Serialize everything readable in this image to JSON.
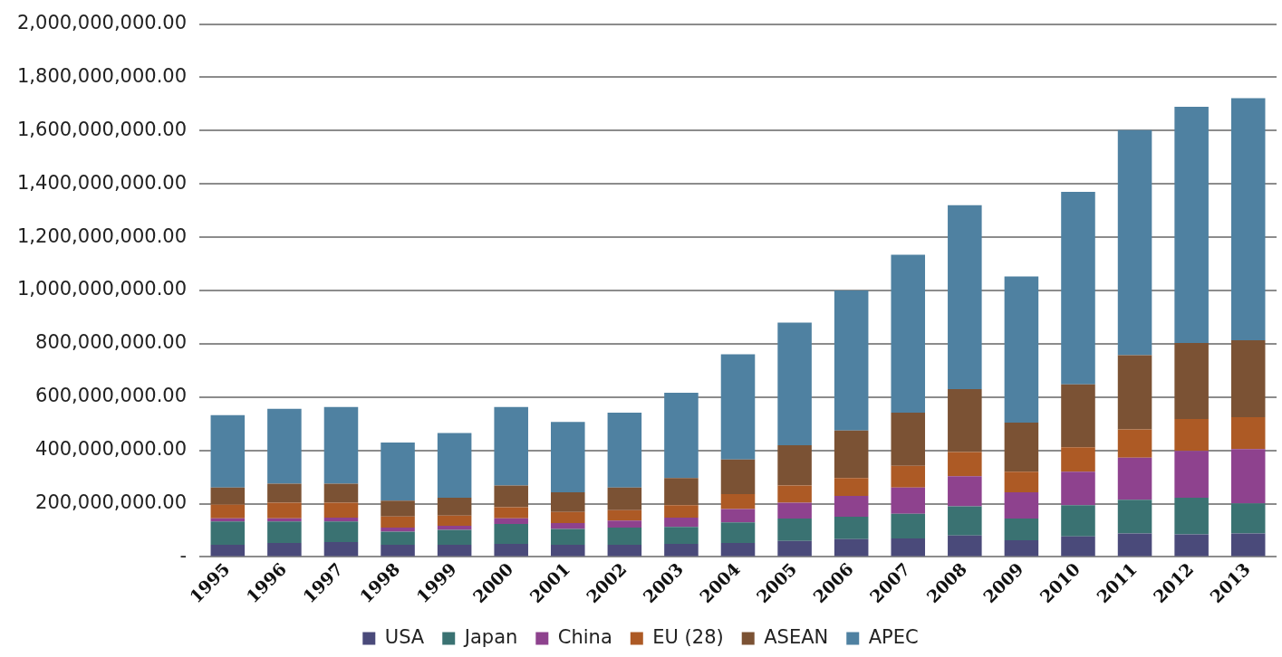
{
  "chart_data": {
    "type": "bar",
    "stacked": true,
    "grid": "y",
    "legend": "bottom",
    "categories": [
      "1995",
      "1996",
      "1997",
      "1998",
      "1999",
      "2000",
      "2001",
      "2002",
      "2003",
      "2004",
      "2005",
      "2006",
      "2007",
      "2008",
      "2009",
      "2010",
      "2011",
      "2012",
      "2013"
    ],
    "ylim": [
      0,
      2000000000
    ],
    "yticks": [
      {
        "value": 0,
        "label": "-"
      },
      {
        "value": 200000000,
        "label": "200,000,000.00"
      },
      {
        "value": 400000000,
        "label": "400,000,000.00"
      },
      {
        "value": 600000000,
        "label": "600,000,000.00"
      },
      {
        "value": 800000000,
        "label": "800,000,000.00"
      },
      {
        "value": 1000000000,
        "label": "1,000,000,000.00"
      },
      {
        "value": 1200000000,
        "label": "1,200,000,000.00"
      },
      {
        "value": 1400000000,
        "label": "1,400,000,000.00"
      },
      {
        "value": 1600000000,
        "label": "1,600,000,000.00"
      },
      {
        "value": 1800000000,
        "label": "1,800,000,000.00"
      },
      {
        "value": 2000000000,
        "label": "2,000,000,000.00"
      }
    ],
    "series": [
      {
        "name": "USA",
        "color": "#4a4a7a",
        "values": [
          46000000,
          53000000,
          56000000,
          46000000,
          46000000,
          49000000,
          46000000,
          46000000,
          49000000,
          53000000,
          60000000,
          67000000,
          70000000,
          81000000,
          63000000,
          77000000,
          88000000,
          85000000,
          88000000
        ]
      },
      {
        "name": "Japan",
        "color": "#3a7272",
        "values": [
          87000000,
          80000000,
          77000000,
          49000000,
          56000000,
          75000000,
          59000000,
          64000000,
          64000000,
          77000000,
          84000000,
          84000000,
          92000000,
          109000000,
          81000000,
          117000000,
          127000000,
          137000000,
          113000000
        ]
      },
      {
        "name": "China",
        "color": "#8e428e",
        "values": [
          12000000,
          12000000,
          15000000,
          15000000,
          15000000,
          21000000,
          22000000,
          27000000,
          35000000,
          50000000,
          60000000,
          78000000,
          99000000,
          113000000,
          99000000,
          126000000,
          158000000,
          176000000,
          204000000
        ]
      },
      {
        "name": "EU (28)",
        "color": "#ad5a25",
        "values": [
          52000000,
          59000000,
          56000000,
          42000000,
          38000000,
          42000000,
          42000000,
          39000000,
          46000000,
          56000000,
          64000000,
          67000000,
          81000000,
          91000000,
          77000000,
          92000000,
          106000000,
          120000000,
          120000000
        ]
      },
      {
        "name": "ASEAN",
        "color": "#7b5234",
        "values": [
          64000000,
          71000000,
          71000000,
          59000000,
          67000000,
          81000000,
          74000000,
          85000000,
          102000000,
          130000000,
          151000000,
          179000000,
          200000000,
          236000000,
          184000000,
          236000000,
          278000000,
          285000000,
          288000000
        ]
      },
      {
        "name": "APEC",
        "color": "#4f81a1",
        "values": [
          271000000,
          281000000,
          288000000,
          219000000,
          243000000,
          295000000,
          264000000,
          281000000,
          320000000,
          395000000,
          461000000,
          525000000,
          592000000,
          690000000,
          549000000,
          722000000,
          845000000,
          887000000,
          909000000
        ]
      }
    ]
  }
}
